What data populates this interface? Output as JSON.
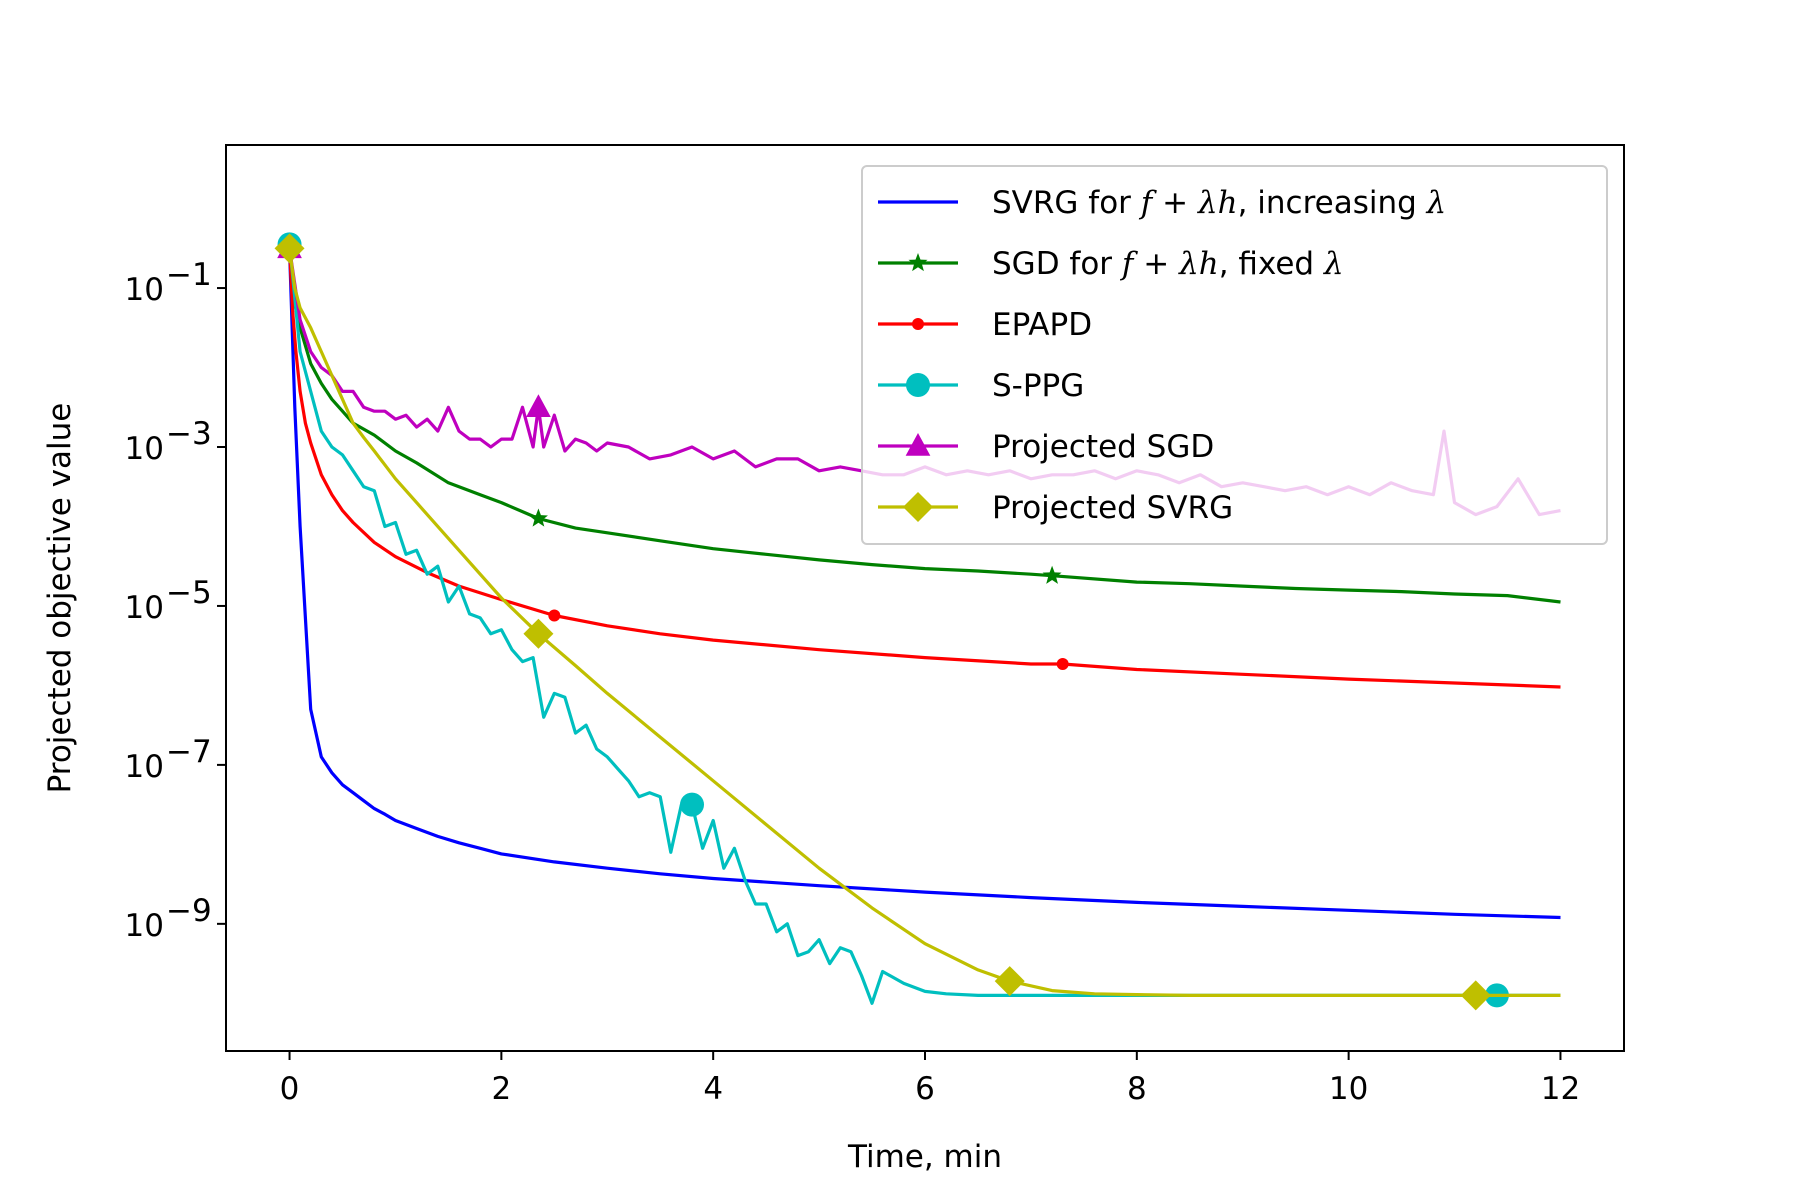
{
  "chart_data": {
    "type": "line",
    "title": "",
    "xlabel": "Time, min",
    "ylabel": "Projected objective value",
    "xlim": [
      -0.6,
      12.6
    ],
    "ylim_log10": [
      -10.6,
      0.8
    ],
    "yscale": "log",
    "grid": false,
    "legend_position": "top-right",
    "x_ticks": [
      {
        "value": 0,
        "label": "0"
      },
      {
        "value": 2,
        "label": "2"
      },
      {
        "value": 4,
        "label": "4"
      },
      {
        "value": 6,
        "label": "6"
      },
      {
        "value": 8,
        "label": "8"
      },
      {
        "value": 10,
        "label": "10"
      },
      {
        "value": 12,
        "label": "12"
      }
    ],
    "y_ticks": [
      {
        "exp": -1,
        "base": "10",
        "sup": "−1"
      },
      {
        "exp": -3,
        "base": "10",
        "sup": "−3"
      },
      {
        "exp": -5,
        "base": "10",
        "sup": "−5"
      },
      {
        "exp": -7,
        "base": "10",
        "sup": "−7"
      },
      {
        "exp": -9,
        "base": "10",
        "sup": "−9"
      }
    ],
    "legend": [
      {
        "series": 0,
        "parts": [
          {
            "t": "SVRG for "
          },
          {
            "t": "f",
            "math": true
          },
          {
            "t": " + "
          },
          {
            "t": "λh",
            "math": true
          },
          {
            "t": ", increasing "
          },
          {
            "t": "λ",
            "math": true
          }
        ]
      },
      {
        "series": 1,
        "parts": [
          {
            "t": "SGD for "
          },
          {
            "t": "f",
            "math": true
          },
          {
            "t": " + "
          },
          {
            "t": "λh",
            "math": true
          },
          {
            "t": ", fixed "
          },
          {
            "t": "λ",
            "math": true
          }
        ]
      },
      {
        "series": 2,
        "parts": [
          {
            "t": "EPAPD"
          }
        ]
      },
      {
        "series": 3,
        "parts": [
          {
            "t": "S-PPG"
          }
        ]
      },
      {
        "series": 4,
        "parts": [
          {
            "t": "Projected SGD"
          }
        ]
      },
      {
        "series": 5,
        "parts": [
          {
            "t": "Projected SVRG"
          }
        ]
      }
    ],
    "series": [
      {
        "name": "SVRG for f + λh, increasing λ",
        "color": "#0000ff",
        "marker": "none",
        "markers_at": [],
        "x": [
          0,
          0.05,
          0.1,
          0.2,
          0.3,
          0.4,
          0.5,
          0.6,
          0.7,
          0.8,
          0.9,
          1.0,
          1.2,
          1.4,
          1.6,
          1.8,
          2.0,
          2.5,
          3.0,
          3.5,
          4.0,
          5.0,
          6.0,
          7.0,
          8.0,
          9.0,
          10.0,
          11.0,
          12.0
        ],
        "logy": [
          -0.5,
          -2.5,
          -4.0,
          -6.3,
          -6.9,
          -7.1,
          -7.25,
          -7.35,
          -7.45,
          -7.55,
          -7.62,
          -7.7,
          -7.8,
          -7.9,
          -7.98,
          -8.05,
          -8.12,
          -8.22,
          -8.3,
          -8.37,
          -8.43,
          -8.52,
          -8.6,
          -8.67,
          -8.73,
          -8.78,
          -8.83,
          -8.88,
          -8.92
        ]
      },
      {
        "name": "SGD for f + λh, fixed λ",
        "color": "#008000",
        "marker": "star",
        "markers_at": [
          2.35,
          7.2
        ],
        "x": [
          0,
          0.05,
          0.1,
          0.2,
          0.3,
          0.4,
          0.5,
          0.6,
          0.8,
          1.0,
          1.2,
          1.5,
          1.8,
          2.0,
          2.35,
          2.7,
          3.0,
          3.5,
          4.0,
          4.5,
          5.0,
          5.5,
          6.0,
          6.5,
          7.0,
          7.2,
          8.0,
          8.5,
          9.0,
          9.5,
          10.0,
          10.5,
          11.0,
          11.5,
          12.0
        ],
        "logy": [
          -0.5,
          -1.2,
          -1.5,
          -1.95,
          -2.2,
          -2.4,
          -2.55,
          -2.7,
          -2.85,
          -3.05,
          -3.2,
          -3.45,
          -3.6,
          -3.7,
          -3.9,
          -4.02,
          -4.08,
          -4.18,
          -4.28,
          -4.35,
          -4.42,
          -4.48,
          -4.53,
          -4.56,
          -4.6,
          -4.62,
          -4.7,
          -4.72,
          -4.75,
          -4.78,
          -4.8,
          -4.82,
          -4.85,
          -4.87,
          -4.95
        ]
      },
      {
        "name": "EPAPD",
        "color": "#ff0000",
        "marker": "dot",
        "markers_at": [
          2.5,
          7.3
        ],
        "x": [
          0,
          0.03,
          0.06,
          0.1,
          0.15,
          0.2,
          0.3,
          0.4,
          0.5,
          0.6,
          0.8,
          1.0,
          1.3,
          1.6,
          2.0,
          2.5,
          3.0,
          3.5,
          4.0,
          5.0,
          6.0,
          7.0,
          7.3,
          8.0,
          9.0,
          10.0,
          11.0,
          12.0
        ],
        "logy": [
          -0.5,
          -1.3,
          -1.8,
          -2.3,
          -2.7,
          -2.95,
          -3.35,
          -3.6,
          -3.8,
          -3.95,
          -4.2,
          -4.38,
          -4.58,
          -4.75,
          -4.92,
          -5.12,
          -5.25,
          -5.35,
          -5.43,
          -5.55,
          -5.65,
          -5.73,
          -5.73,
          -5.8,
          -5.86,
          -5.92,
          -5.97,
          -6.02
        ]
      },
      {
        "name": "S-PPG",
        "color": "#00bfbf",
        "marker": "circle",
        "markers_at": [
          0,
          3.8,
          11.4
        ],
        "x": [
          0,
          0.1,
          0.2,
          0.3,
          0.4,
          0.5,
          0.6,
          0.7,
          0.8,
          0.9,
          1.0,
          1.1,
          1.2,
          1.3,
          1.4,
          1.5,
          1.6,
          1.7,
          1.8,
          1.9,
          2.0,
          2.1,
          2.2,
          2.3,
          2.4,
          2.5,
          2.6,
          2.7,
          2.8,
          2.9,
          3.0,
          3.1,
          3.2,
          3.3,
          3.4,
          3.5,
          3.6,
          3.7,
          3.8,
          3.9,
          4.0,
          4.1,
          4.2,
          4.3,
          4.4,
          4.5,
          4.6,
          4.7,
          4.8,
          4.9,
          5.0,
          5.1,
          5.2,
          5.3,
          5.4,
          5.5,
          5.6,
          5.8,
          6.0,
          6.2,
          6.5,
          7.0,
          8.0,
          9.0,
          10.0,
          11.0,
          11.4,
          12.0
        ],
        "logy": [
          -0.45,
          -1.8,
          -2.3,
          -2.8,
          -3.0,
          -3.1,
          -3.3,
          -3.5,
          -3.55,
          -4.0,
          -3.95,
          -4.35,
          -4.3,
          -4.6,
          -4.5,
          -4.95,
          -4.75,
          -5.1,
          -5.15,
          -5.35,
          -5.3,
          -5.55,
          -5.7,
          -5.65,
          -6.4,
          -6.1,
          -6.15,
          -6.6,
          -6.5,
          -6.8,
          -6.9,
          -7.05,
          -7.2,
          -7.4,
          -7.35,
          -7.4,
          -8.1,
          -7.5,
          -7.5,
          -8.05,
          -7.7,
          -8.3,
          -8.05,
          -8.45,
          -8.75,
          -8.75,
          -9.1,
          -9.0,
          -9.4,
          -9.35,
          -9.2,
          -9.5,
          -9.3,
          -9.35,
          -9.65,
          -10.0,
          -9.6,
          -9.75,
          -9.85,
          -9.88,
          -9.9,
          -9.9,
          -9.9,
          -9.9,
          -9.9,
          -9.9,
          -9.9,
          -9.9
        ]
      },
      {
        "name": "Projected SGD",
        "color": "#bf00bf",
        "marker": "triangle",
        "markers_at": [
          0,
          2.35
        ],
        "x": [
          0,
          0.1,
          0.2,
          0.3,
          0.4,
          0.5,
          0.6,
          0.7,
          0.8,
          0.9,
          1.0,
          1.1,
          1.2,
          1.3,
          1.4,
          1.5,
          1.6,
          1.7,
          1.8,
          1.9,
          2.0,
          2.1,
          2.2,
          2.3,
          2.35,
          2.4,
          2.5,
          2.6,
          2.7,
          2.8,
          2.9,
          3.0,
          3.2,
          3.4,
          3.6,
          3.8,
          4.0,
          4.2,
          4.4,
          4.6,
          4.8,
          5.0,
          5.2,
          5.4,
          5.6,
          5.8,
          6.0,
          6.2,
          6.4,
          6.6,
          6.8,
          7.0,
          7.2,
          7.4,
          7.6,
          7.8,
          8.0,
          8.2,
          8.4,
          8.6,
          8.8,
          9.0,
          9.2,
          9.4,
          9.6,
          9.8,
          10.0,
          10.2,
          10.4,
          10.6,
          10.8,
          10.9,
          11.0,
          11.2,
          11.4,
          11.6,
          11.8,
          12.0
        ],
        "logy": [
          -0.5,
          -1.4,
          -1.8,
          -2.0,
          -2.1,
          -2.3,
          -2.3,
          -2.5,
          -2.55,
          -2.55,
          -2.65,
          -2.6,
          -2.75,
          -2.65,
          -2.8,
          -2.5,
          -2.8,
          -2.9,
          -2.9,
          -3.0,
          -2.9,
          -2.9,
          -2.5,
          -3.0,
          -2.5,
          -3.0,
          -2.6,
          -3.05,
          -2.9,
          -2.95,
          -3.05,
          -2.95,
          -3.0,
          -3.15,
          -3.1,
          -3.0,
          -3.15,
          -3.05,
          -3.25,
          -3.15,
          -3.15,
          -3.3,
          -3.25,
          -3.3,
          -3.35,
          -3.35,
          -3.25,
          -3.35,
          -3.3,
          -3.35,
          -3.3,
          -3.4,
          -3.35,
          -3.35,
          -3.3,
          -3.4,
          -3.3,
          -3.35,
          -3.45,
          -3.35,
          -3.5,
          -3.45,
          -3.5,
          -3.55,
          -3.5,
          -3.6,
          -3.5,
          -3.6,
          -3.45,
          -3.55,
          -3.6,
          -2.8,
          -3.7,
          -3.85,
          -3.75,
          -3.4,
          -3.85,
          -3.8
        ]
      },
      {
        "name": "Projected SVRG",
        "color": "#bfbf00",
        "marker": "diamond",
        "markers_at": [
          0,
          2.35,
          6.8,
          11.2
        ],
        "x": [
          0,
          0.05,
          0.1,
          0.2,
          0.3,
          0.4,
          0.5,
          0.6,
          0.7,
          0.8,
          1.0,
          1.2,
          1.5,
          1.8,
          2.0,
          2.35,
          2.7,
          3.0,
          3.5,
          4.0,
          4.5,
          5.0,
          5.5,
          6.0,
          6.5,
          6.8,
          7.2,
          7.6,
          8.0,
          8.5,
          9.0,
          10.0,
          11.0,
          11.2,
          12.0
        ],
        "logy": [
          -0.5,
          -1.0,
          -1.25,
          -1.5,
          -1.8,
          -2.1,
          -2.4,
          -2.7,
          -2.88,
          -3.05,
          -3.4,
          -3.7,
          -4.15,
          -4.6,
          -4.9,
          -5.35,
          -5.75,
          -6.1,
          -6.65,
          -7.2,
          -7.75,
          -8.3,
          -8.8,
          -9.25,
          -9.58,
          -9.72,
          -9.84,
          -9.88,
          -9.89,
          -9.9,
          -9.9,
          -9.9,
          -9.9,
          -9.9,
          -9.9
        ]
      }
    ]
  }
}
